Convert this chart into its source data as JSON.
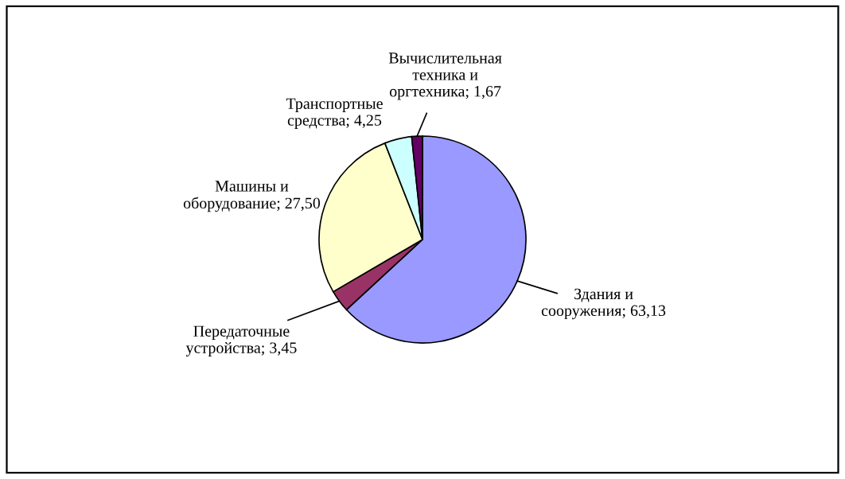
{
  "chart_data": {
    "type": "pie",
    "categories": [
      "Здания и\nсооружения",
      "Передаточные\nустройства",
      "Машины и\nоборудование",
      "Транспортные\nсредства",
      "Вычислительная\nтехника и\nоргтехника"
    ],
    "values": [
      63.13,
      3.45,
      27.5,
      4.25,
      1.67
    ],
    "value_labels": [
      "63,13",
      "3,45",
      "27,50",
      "4,25",
      "1,67"
    ],
    "colors": [
      "#9999ff",
      "#993366",
      "#ffffcc",
      "#ccffff",
      "#660066"
    ],
    "legend": false
  }
}
